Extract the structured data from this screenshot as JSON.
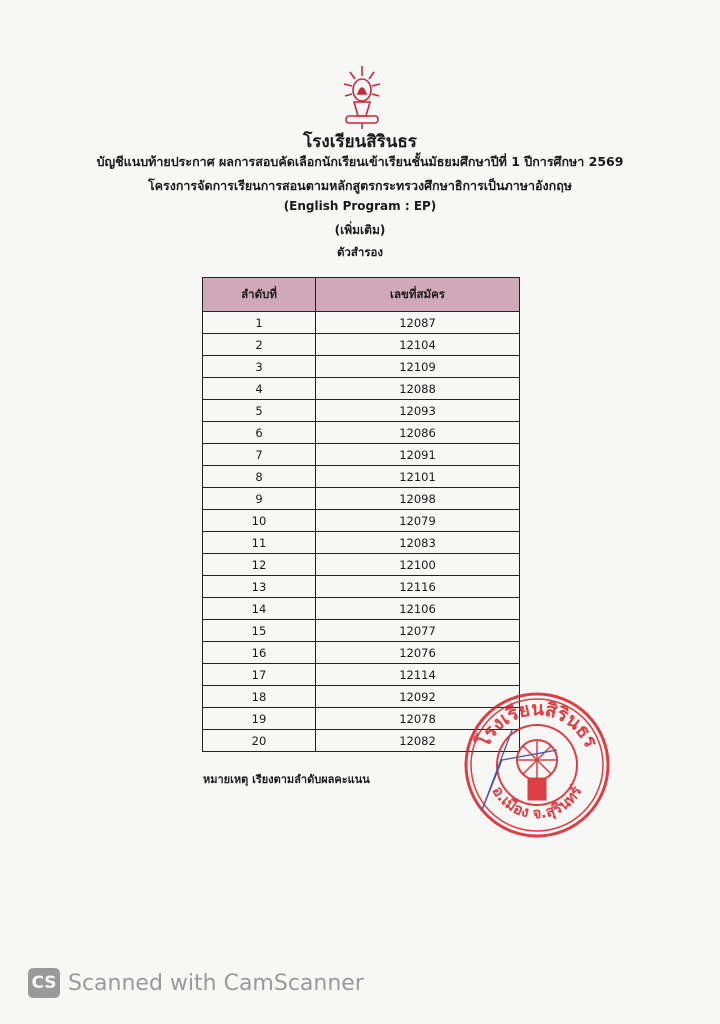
{
  "header": {
    "school_name": "โรงเรียนสิรินธร",
    "announcement": "บัญชีแนบท้ายประกาศ ผลการสอบคัดเลือกนักเรียนเข้าเรียนชั้นมัธยมศึกษาปีที่ 1  ปีการศึกษา 2569",
    "program": "โครงการจัดการเรียนการสอนตามหลักสูตรกระทรวงศึกษาธิการเป็นภาษาอังกฤษ",
    "program_en": "(English Program : EP)",
    "additional": "(เพิ่มเติม)",
    "list_type": "ตัวสำรอง"
  },
  "table": {
    "columns": [
      "ลำดับที่",
      "เลขที่สมัคร"
    ],
    "rows": [
      [
        "1",
        "12087"
      ],
      [
        "2",
        "12104"
      ],
      [
        "3",
        "12109"
      ],
      [
        "4",
        "12088"
      ],
      [
        "5",
        "12093"
      ],
      [
        "6",
        "12086"
      ],
      [
        "7",
        "12091"
      ],
      [
        "8",
        "12101"
      ],
      [
        "9",
        "12098"
      ],
      [
        "10",
        "12079"
      ],
      [
        "11",
        "12083"
      ],
      [
        "12",
        "12100"
      ],
      [
        "13",
        "12116"
      ],
      [
        "14",
        "12106"
      ],
      [
        "15",
        "12077"
      ],
      [
        "16",
        "12076"
      ],
      [
        "17",
        "12114"
      ],
      [
        "18",
        "12092"
      ],
      [
        "19",
        "12078"
      ],
      [
        "20",
        "12082"
      ]
    ]
  },
  "note": "หมายเหตุ  เรียงตามลำดับผลคะแนน",
  "stamp": {
    "top_text": "โรงเรียนสิรินธร",
    "bottom_text": "อ.เมือง จ.สุรินทร์",
    "color": "#d8262b"
  },
  "watermark": {
    "icon": "CS",
    "text": "Scanned with CamScanner"
  },
  "colors": {
    "header_fill": "#cfa9b8",
    "logo": "#c8283a"
  }
}
